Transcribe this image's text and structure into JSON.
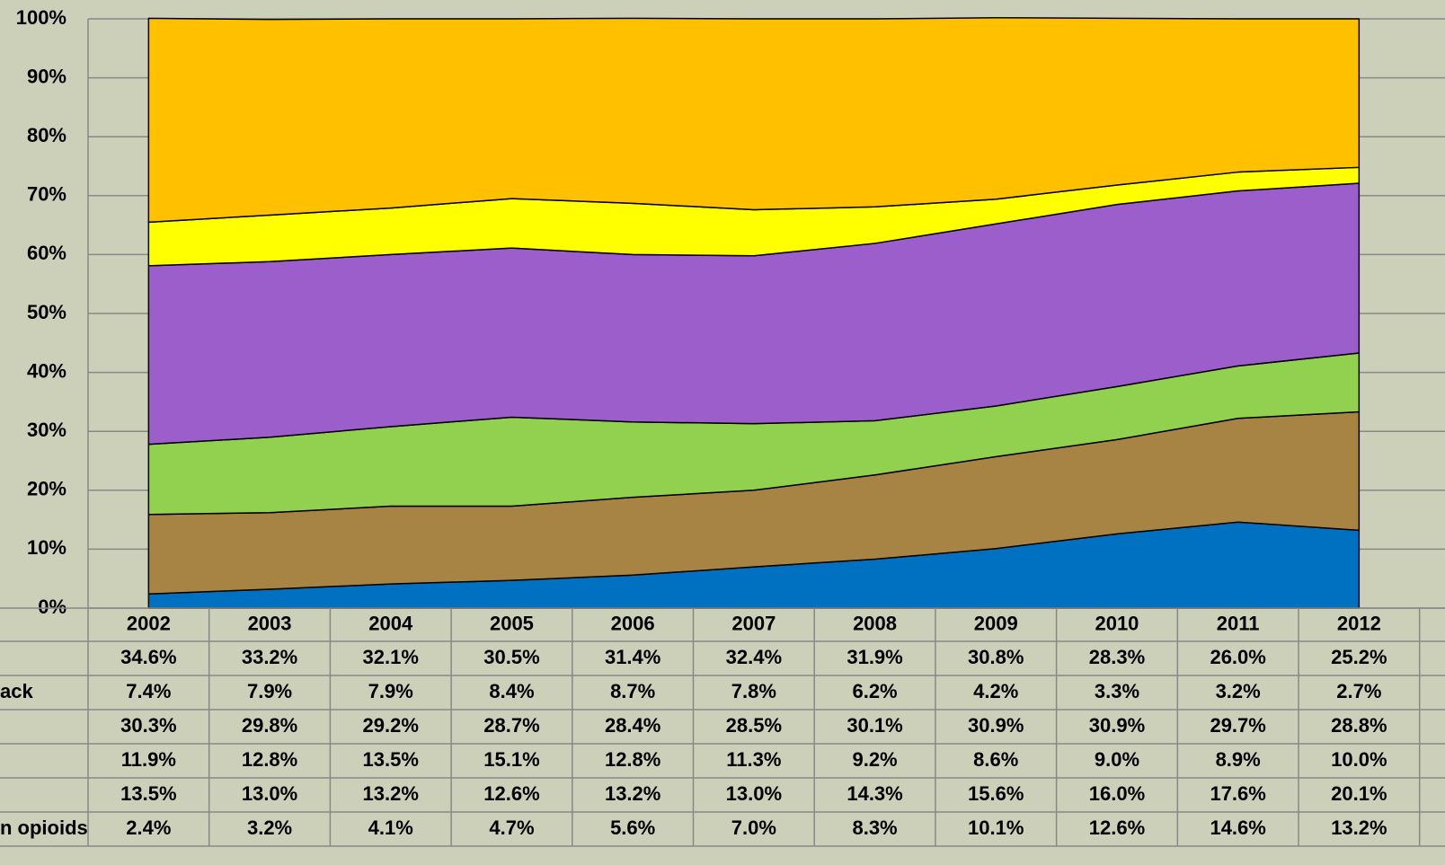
{
  "chart_data": {
    "type": "stacked_area",
    "categories": [
      "2002",
      "2003",
      "2004",
      "2005",
      "2006",
      "2007",
      "2008",
      "2009",
      "2010",
      "2011",
      "2012"
    ],
    "series": [
      {
        "name": "n opioids",
        "color": "#0070c0",
        "values": [
          2.4,
          3.2,
          4.1,
          4.7,
          5.6,
          7.0,
          8.3,
          10.1,
          12.6,
          14.6,
          13.2
        ],
        "value_labels": [
          "2.4%",
          "3.2%",
          "4.1%",
          "4.7%",
          "5.6%",
          "7.0%",
          "8.3%",
          "10.1%",
          "12.6%",
          "14.6%",
          "13.2%"
        ]
      },
      {
        "name": null,
        "color": "#a88444",
        "values": [
          13.5,
          13.0,
          13.2,
          12.6,
          13.2,
          13.0,
          14.3,
          15.6,
          16.0,
          17.6,
          20.1
        ],
        "value_labels": [
          "13.5%",
          "13.0%",
          "13.2%",
          "12.6%",
          "13.2%",
          "13.0%",
          "14.3%",
          "15.6%",
          "16.0%",
          "17.6%",
          "20.1%"
        ]
      },
      {
        "name": null,
        "color": "#92d050",
        "values": [
          11.9,
          12.8,
          13.5,
          15.1,
          12.8,
          11.3,
          9.2,
          8.6,
          9.0,
          8.9,
          10.0
        ],
        "value_labels": [
          "11.9%",
          "12.8%",
          "13.5%",
          "15.1%",
          "12.8%",
          "11.3%",
          "9.2%",
          "8.6%",
          "9.0%",
          "8.9%",
          "10.0%"
        ]
      },
      {
        "name": null,
        "color": "#9b5ecb",
        "values": [
          30.3,
          29.8,
          29.2,
          28.7,
          28.4,
          28.5,
          30.1,
          30.9,
          30.9,
          29.7,
          28.8
        ],
        "value_labels": [
          "30.3%",
          "29.8%",
          "29.2%",
          "28.7%",
          "28.4%",
          "28.5%",
          "30.1%",
          "30.9%",
          "30.9%",
          "29.7%",
          "28.8%"
        ]
      },
      {
        "name": "ack",
        "color": "#ffff00",
        "values": [
          7.4,
          7.9,
          7.9,
          8.4,
          8.7,
          7.8,
          6.2,
          4.2,
          3.3,
          3.2,
          2.7
        ],
        "value_labels": [
          "7.4%",
          "7.9%",
          "7.9%",
          "8.4%",
          "8.7%",
          "7.8%",
          "6.2%",
          "4.2%",
          "3.3%",
          "3.2%",
          "2.7%"
        ]
      },
      {
        "name": null,
        "color": "#ffc000",
        "values": [
          34.6,
          33.2,
          32.1,
          30.5,
          31.4,
          32.4,
          31.9,
          30.8,
          28.3,
          26.0,
          25.2
        ],
        "value_labels": [
          "34.6%",
          "33.2%",
          "32.1%",
          "30.5%",
          "31.4%",
          "32.4%",
          "31.9%",
          "30.8%",
          "28.3%",
          "26.0%",
          "25.2%"
        ]
      }
    ],
    "ylim": [
      0,
      100
    ],
    "yticks": [
      {
        "value": 0,
        "label": "0%"
      },
      {
        "value": 10,
        "label": "10%"
      },
      {
        "value": 20,
        "label": "20%"
      },
      {
        "value": 30,
        "label": "30%"
      },
      {
        "value": 40,
        "label": "40%"
      },
      {
        "value": 50,
        "label": "50%"
      },
      {
        "value": 60,
        "label": "60%"
      },
      {
        "value": 70,
        "label": "70%"
      },
      {
        "value": 80,
        "label": "80%"
      },
      {
        "value": 90,
        "label": "90%"
      },
      {
        "value": 100,
        "label": "100%"
      }
    ],
    "grid": true
  }
}
